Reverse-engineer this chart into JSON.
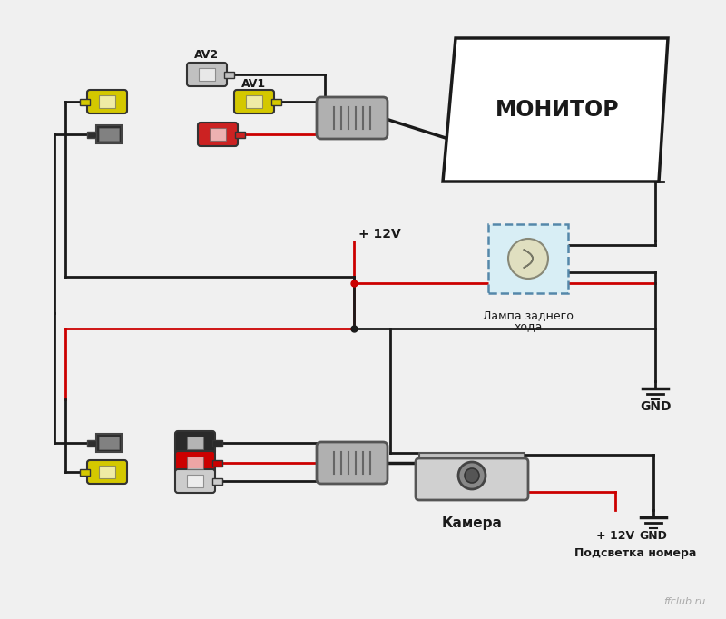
{
  "bg_color": "#f0f0f0",
  "lc": "#1a1a1a",
  "rc": "#cc0000",
  "yellow": "#d4c800",
  "lamp_fill": "#d8eef5",
  "lamp_border": "#5588aa",
  "monitor_label": "МОНИТОР",
  "lamp_label_1": "Лампа заднего",
  "lamp_label_2": "хода",
  "camera_label": "Камера",
  "gnd_label": "GND",
  "gnd_label2": "GND",
  "plus12v": "+ 12V",
  "plus12v2": "+ 12V",
  "backlight_label": "Подсветка номера",
  "av1_label": "AV1",
  "av2_label": "AV2",
  "watermark": "ffclub.ru"
}
